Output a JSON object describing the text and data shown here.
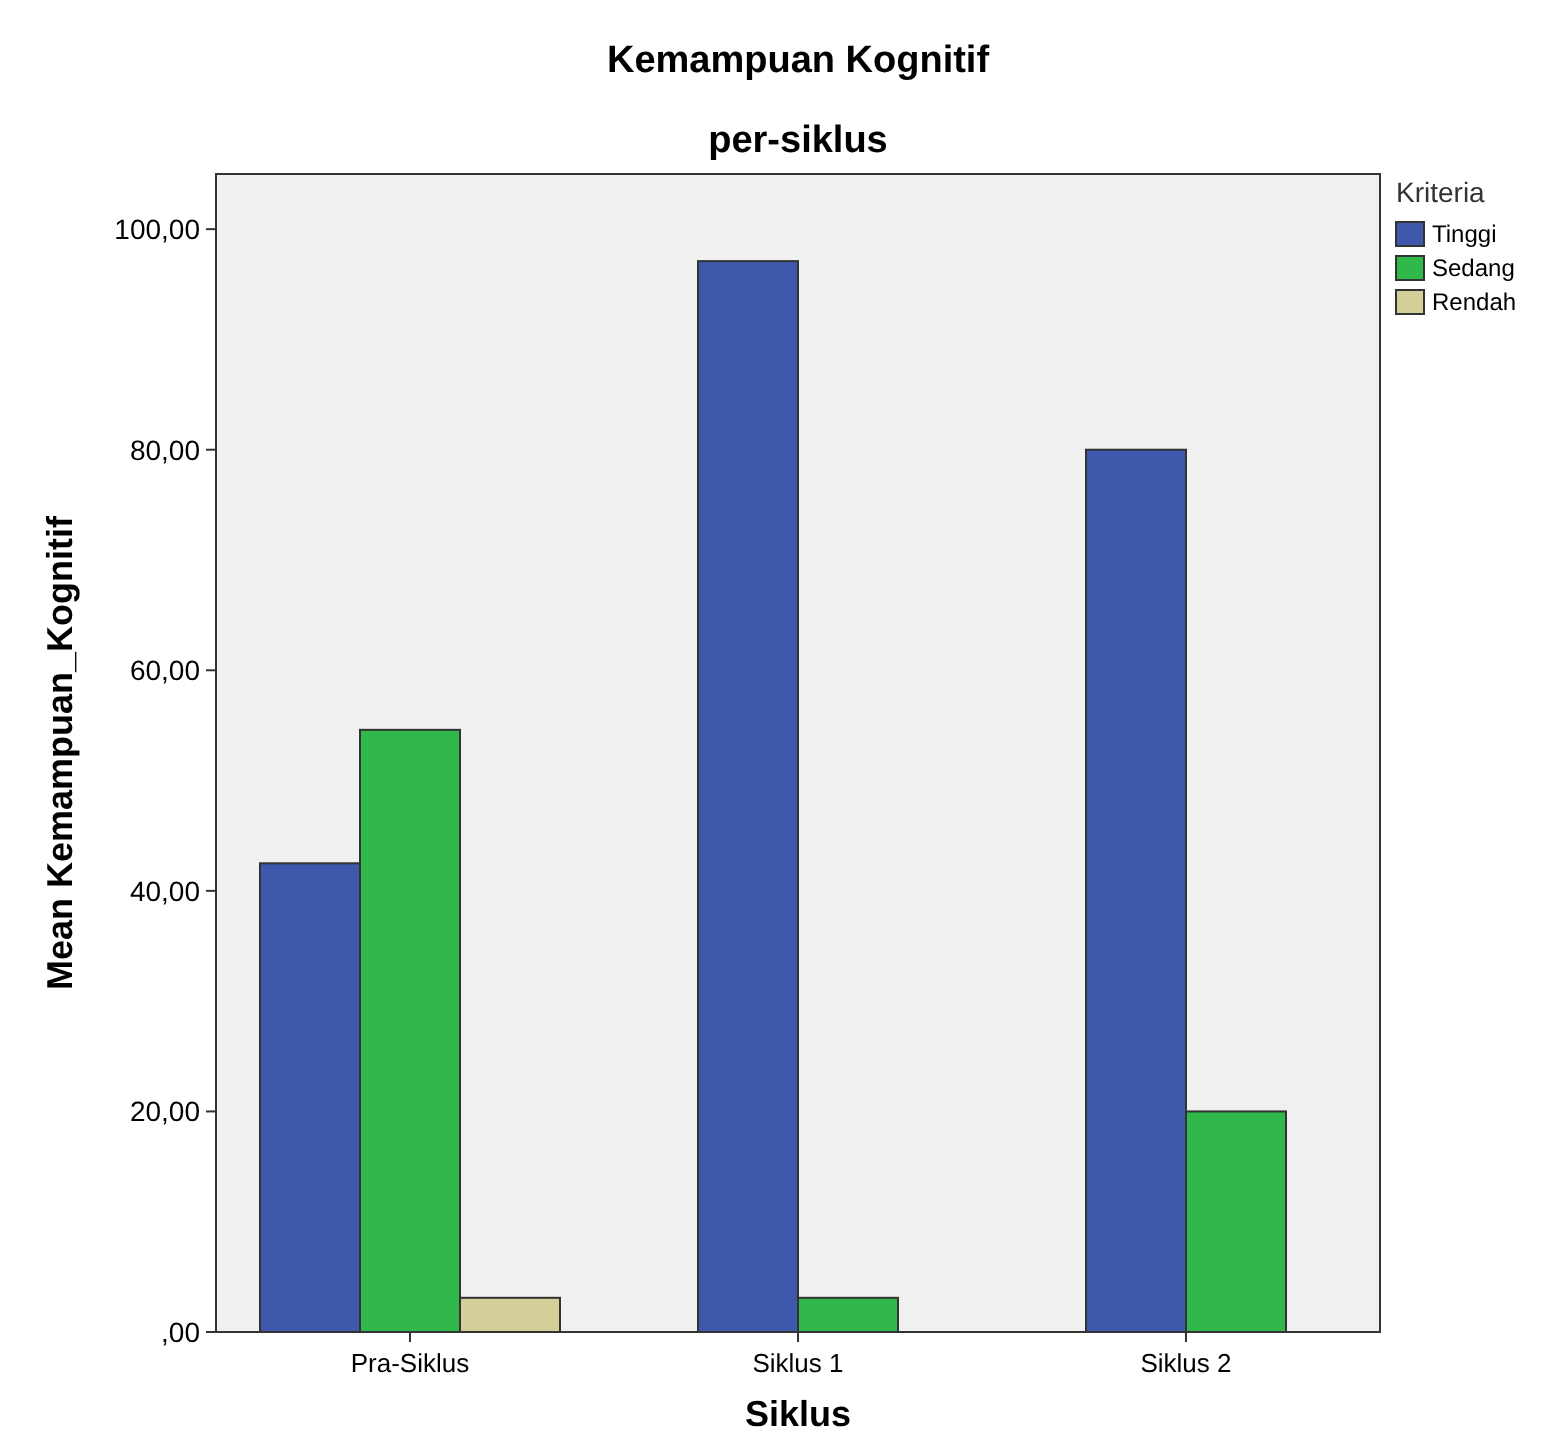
{
  "chart_data": {
    "type": "bar",
    "title": "Kemampuan Kognitif\nper-siklus",
    "xlabel": "Siklus",
    "ylabel": "Mean Kemampuan_Kognitif",
    "legend_title": "Kriteria",
    "legend": "top right",
    "grid": false,
    "categories": [
      "Pra-Siklus",
      "Siklus 1",
      "Siklus 2"
    ],
    "series": [
      {
        "name": "Tinggi",
        "color": "#3e58ac",
        "values": [
          42.5,
          97.1,
          80
        ]
      },
      {
        "name": "Sedang",
        "color": "#30b84a",
        "values": [
          54.6,
          3.1,
          20
        ]
      },
      {
        "name": "Rendah",
        "color": "#d4cf98",
        "values": [
          3.1,
          null,
          null
        ]
      }
    ],
    "ylim": [
      0,
      105
    ],
    "yticks": [
      {
        "value": 0,
        "label": ",00"
      },
      {
        "value": 20,
        "label": "20,00"
      },
      {
        "value": 40,
        "label": "40,00"
      },
      {
        "value": 60,
        "label": "60,00"
      },
      {
        "value": 80,
        "label": "80,00"
      },
      {
        "value": 100,
        "label": "100,00"
      }
    ]
  }
}
